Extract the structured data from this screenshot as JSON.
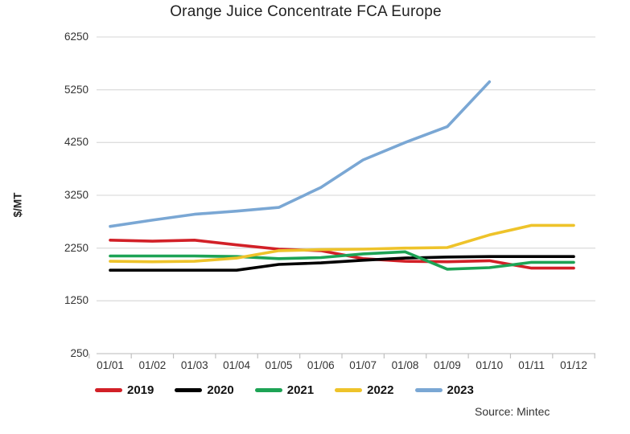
{
  "title": "Orange Juice Concentrate FCA Europe",
  "source": "Source: Mintec",
  "chart_data": {
    "type": "line",
    "title": "Orange Juice Concentrate FCA Europe",
    "xlabel": "",
    "ylabel": "$/MT",
    "x_labels": [
      "01/01",
      "01/02",
      "01/03",
      "01/04",
      "01/05",
      "01/06",
      "01/07",
      "01/08",
      "01/09",
      "01/10",
      "01/11",
      "01/12"
    ],
    "y_ticks": [
      6250,
      5250,
      4250,
      3250,
      2250,
      1250,
      250
    ],
    "ylim": [
      250,
      6250
    ],
    "grid": "horizontal",
    "legend_position": "bottom",
    "series": [
      {
        "name": "2019",
        "color": "#d22027",
        "values": [
          2400,
          2380,
          2400,
          2310,
          2230,
          2200,
          2050,
          2000,
          1990,
          2010,
          1870,
          1870
        ]
      },
      {
        "name": "2020",
        "color": "#000000",
        "values": [
          1830,
          1830,
          1830,
          1830,
          1940,
          1970,
          2020,
          2060,
          2080,
          2090,
          2090,
          2090
        ]
      },
      {
        "name": "2021",
        "color": "#1da355",
        "values": [
          2100,
          2100,
          2100,
          2090,
          2050,
          2070,
          2140,
          2180,
          1850,
          1880,
          1980,
          1980
        ]
      },
      {
        "name": "2022",
        "color": "#eec32a",
        "values": [
          2000,
          1990,
          2000,
          2060,
          2200,
          2220,
          2230,
          2250,
          2260,
          2500,
          2680,
          2680
        ]
      },
      {
        "name": "2023",
        "color": "#7aa7d4",
        "values": [
          2660,
          2780,
          2890,
          2950,
          3020,
          3400,
          3920,
          4250,
          4550,
          5400,
          null,
          null
        ]
      }
    ]
  }
}
